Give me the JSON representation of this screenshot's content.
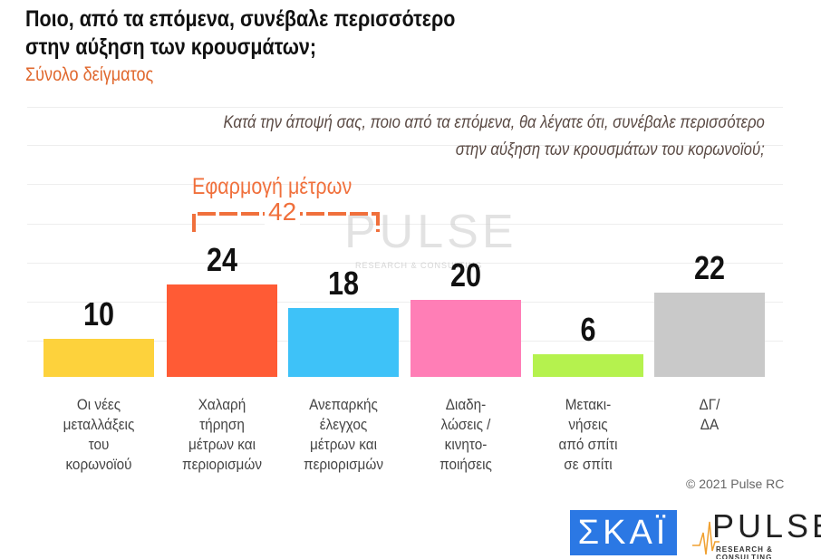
{
  "chart_data": {
    "type": "bar",
    "title": "Ποιο, από τα επόμενα, συνέβαλε περισσότερο στην αύξηση των κρουσμάτων;",
    "subtitle": "Σύνολο δείγματος",
    "question": [
      "Κατά την άποψή σας, ποιο από τα επόμενα, θα λέγατε ότι, συνέβαλε περισσότερο",
      "στην αύξηση των κρουσμάτων του κορωνοϊού;"
    ],
    "categories": [
      [
        "Οι νέες",
        "μεταλλάξεις",
        "του",
        "κορωνοϊού"
      ],
      [
        "Χαλαρή",
        "τήρηση",
        "μέτρων και",
        "περιορισμών"
      ],
      [
        "Ανεπαρκής",
        "έλεγχος",
        "μέτρων και",
        "περιορισμών"
      ],
      [
        "Διαδη-",
        "λώσεις /",
        "κινητο-",
        "ποιήσεις"
      ],
      [
        "Μετακι-",
        "νήσεις",
        "από σπίτι",
        "σε σπίτι"
      ],
      [
        "ΔΓ/",
        "ΔΑ"
      ]
    ],
    "values": [
      10,
      24,
      18,
      20,
      6,
      22
    ],
    "colors": [
      "#FDD23C",
      "#FF5B35",
      "#3EC2F8",
      "#FF7EB6",
      "#B5F24E",
      "#C9C9C9"
    ],
    "ylim": [
      0,
      24
    ],
    "grid": true,
    "annotation": {
      "label": "Εφαρμογή μέτρων",
      "value": "42"
    }
  },
  "watermark": {
    "text": "PULSE",
    "subtext": "RESEARCH & CONSULTING"
  },
  "footer": {
    "copyright": "© 2021 Pulse RC",
    "logo_skai": "ΣΚΑΪ",
    "logo_pulse": "PULSE",
    "logo_pulse_sub": "RESEARCH & CONSULTING"
  }
}
